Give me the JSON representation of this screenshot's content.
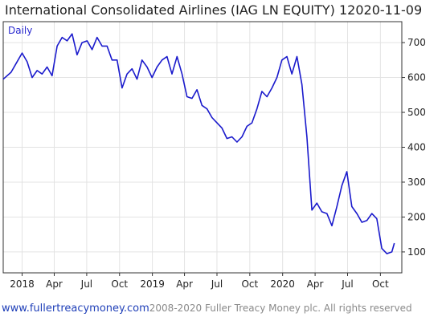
{
  "title": {
    "name": "International Consolidated Airlines (IAG LN EQUITY) 1",
    "date": "2020-11-09"
  },
  "footer": {
    "url": "www.fullertreacymoney.com",
    "copyright": "2008-2020 Fuller Treacy Money plc. All rights reserved"
  },
  "colors": {
    "line": "#1a1acc",
    "grid": "#e3e3e3",
    "url": "#1f3fb8"
  },
  "chart_data": {
    "type": "line",
    "frequency_label": "Daily",
    "title": "International Consolidated Airlines (IAG LN EQUITY) 1",
    "xlabel": "",
    "ylabel": "",
    "ylim": [
      40,
      760
    ],
    "xlim": [
      "2017-11-09",
      "2020-11-30"
    ],
    "y_ticks": [
      100,
      200,
      300,
      400,
      500,
      600,
      700
    ],
    "x_ticks": [
      {
        "date": "2018-01-01",
        "label": "2018"
      },
      {
        "date": "2018-04-01",
        "label": "Apr"
      },
      {
        "date": "2018-07-01",
        "label": "Jul"
      },
      {
        "date": "2018-10-01",
        "label": "Oct"
      },
      {
        "date": "2019-01-01",
        "label": "2019"
      },
      {
        "date": "2019-04-01",
        "label": "Apr"
      },
      {
        "date": "2019-07-01",
        "label": "Jul"
      },
      {
        "date": "2019-10-01",
        "label": "Oct"
      },
      {
        "date": "2020-01-01",
        "label": "2020"
      },
      {
        "date": "2020-04-01",
        "label": "Apr"
      },
      {
        "date": "2020-07-01",
        "label": "Jul"
      },
      {
        "date": "2020-10-01",
        "label": "Oct"
      }
    ],
    "grid": true,
    "y_axis_side": "right",
    "series": [
      {
        "name": "",
        "x": [
          "2017-11-09",
          "2017-12-01",
          "2017-12-15",
          "2018-01-01",
          "2018-01-15",
          "2018-01-29",
          "2018-02-12",
          "2018-02-26",
          "2018-03-12",
          "2018-03-26",
          "2018-04-09",
          "2018-04-23",
          "2018-05-07",
          "2018-05-21",
          "2018-06-04",
          "2018-06-18",
          "2018-07-02",
          "2018-07-16",
          "2018-07-30",
          "2018-08-13",
          "2018-08-27",
          "2018-09-10",
          "2018-09-24",
          "2018-10-08",
          "2018-10-22",
          "2018-11-05",
          "2018-11-19",
          "2018-12-03",
          "2018-12-17",
          "2018-12-31",
          "2019-01-14",
          "2019-01-28",
          "2019-02-11",
          "2019-02-25",
          "2019-03-11",
          "2019-03-25",
          "2019-04-08",
          "2019-04-22",
          "2019-05-06",
          "2019-05-20",
          "2019-06-03",
          "2019-06-17",
          "2019-07-01",
          "2019-07-15",
          "2019-07-29",
          "2019-08-12",
          "2019-08-26",
          "2019-09-09",
          "2019-09-23",
          "2019-10-07",
          "2019-10-21",
          "2019-11-04",
          "2019-11-18",
          "2019-12-02",
          "2019-12-16",
          "2019-12-30",
          "2020-01-13",
          "2020-01-27",
          "2020-02-10",
          "2020-02-24",
          "2020-03-09",
          "2020-03-23",
          "2020-04-06",
          "2020-04-20",
          "2020-05-04",
          "2020-05-18",
          "2020-06-01",
          "2020-06-15",
          "2020-06-29",
          "2020-07-13",
          "2020-07-27",
          "2020-08-10",
          "2020-08-24",
          "2020-09-07",
          "2020-09-21",
          "2020-10-05",
          "2020-10-19",
          "2020-11-02",
          "2020-11-09"
        ],
        "values": [
          595,
          615,
          640,
          670,
          645,
          600,
          620,
          610,
          630,
          605,
          690,
          715,
          705,
          725,
          665,
          700,
          705,
          680,
          715,
          690,
          690,
          650,
          650,
          570,
          610,
          625,
          595,
          650,
          630,
          600,
          630,
          650,
          660,
          610,
          660,
          610,
          545,
          540,
          565,
          520,
          510,
          485,
          470,
          455,
          425,
          430,
          415,
          430,
          460,
          470,
          510,
          560,
          545,
          570,
          600,
          650,
          660,
          610,
          660,
          580,
          430,
          220,
          240,
          215,
          210,
          175,
          230,
          290,
          330,
          230,
          210,
          185,
          190,
          210,
          195,
          110,
          95,
          100,
          125
        ]
      }
    ]
  }
}
